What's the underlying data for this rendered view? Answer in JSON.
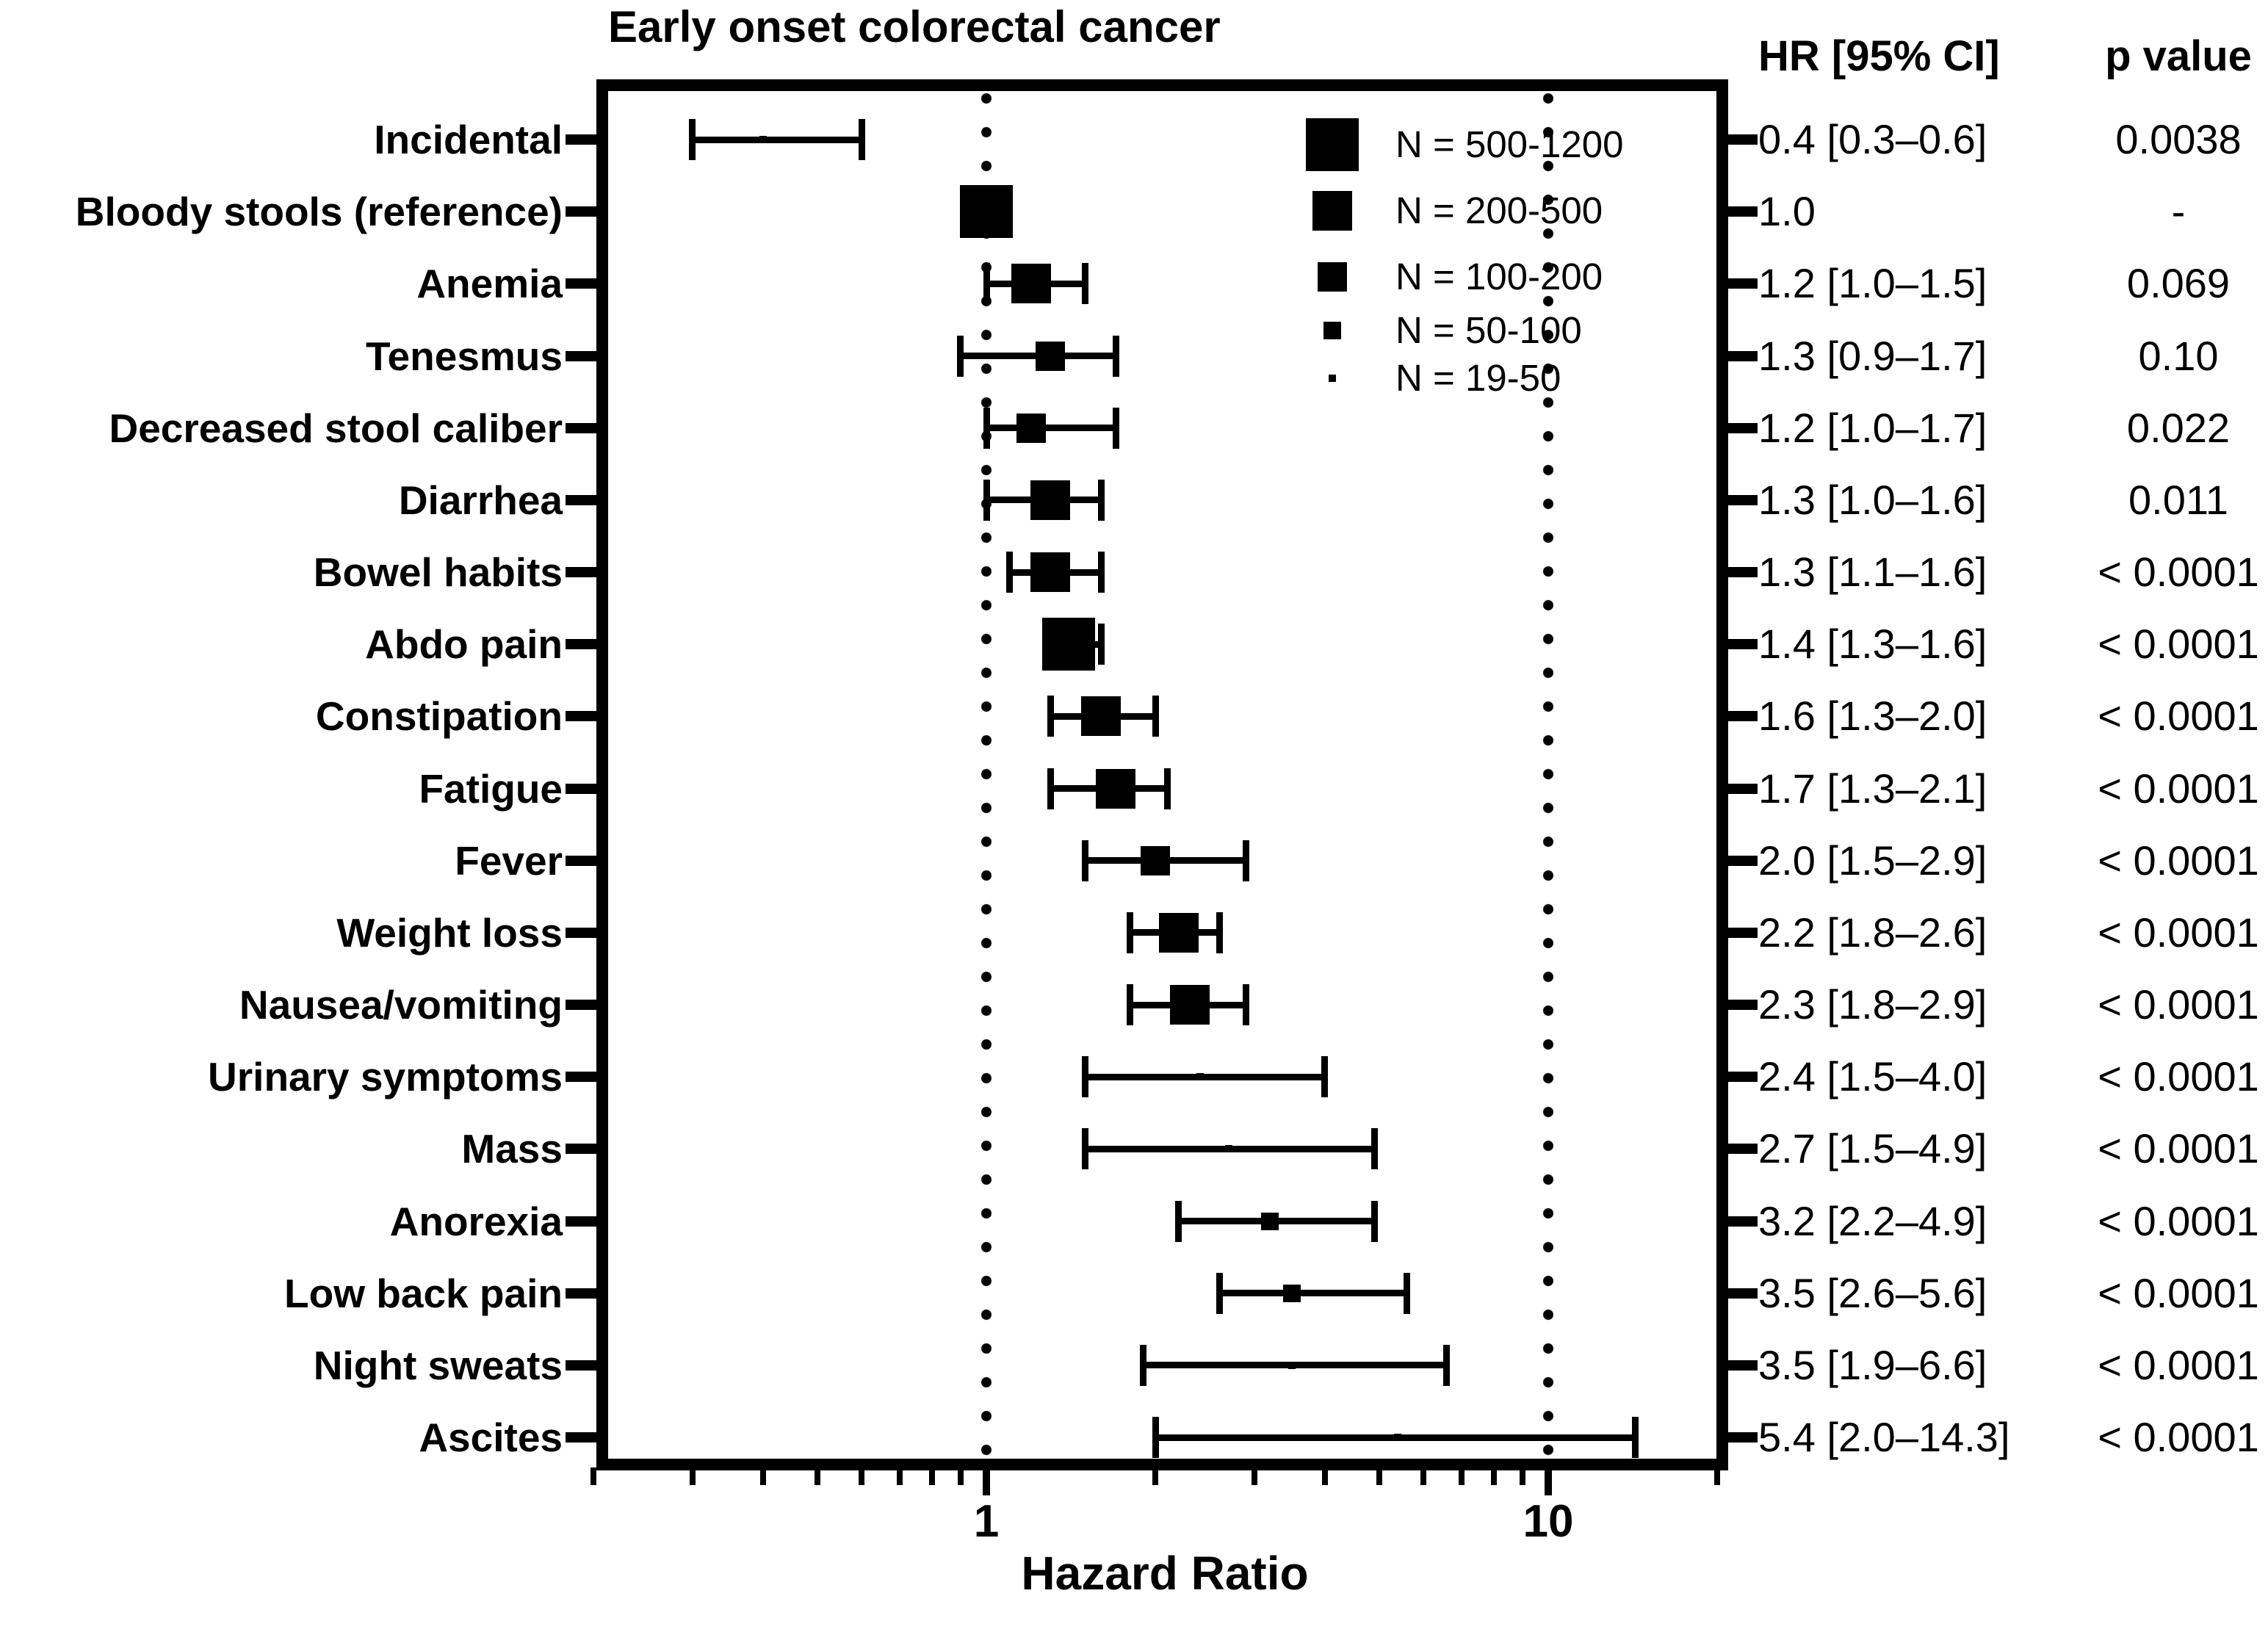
{
  "chart_data": {
    "type": "scatter",
    "subtype": "forest-plot",
    "title": "Early onset colorectal cancer",
    "xlabel": "Hazard Ratio",
    "x_scale": "log",
    "xlim": [
      0.2,
      20
    ],
    "grid": false,
    "reference_lines": [
      1,
      10
    ],
    "x_axis": {
      "major_ticks": [
        {
          "value": 1,
          "label": "1"
        },
        {
          "value": 10,
          "label": "10"
        }
      ],
      "minor_ticks": [
        0.2,
        0.3,
        0.4,
        0.5,
        0.6,
        0.7,
        0.8,
        0.9,
        2,
        3,
        4,
        5,
        6,
        7,
        8,
        9,
        20
      ]
    },
    "columns": {
      "hr_header": "HR [95% CI]",
      "p_header": "p value"
    },
    "legend": [
      {
        "label": "N = 500-1200",
        "n_range": "500-1200"
      },
      {
        "label": "N = 200-500",
        "n_range": "200-500"
      },
      {
        "label": "N = 100-200",
        "n_range": "100-200"
      },
      {
        "label": "N = 50-100",
        "n_range": "50-100"
      },
      {
        "label": "N = 19-50",
        "n_range": "19-50"
      }
    ],
    "rows": [
      {
        "label": "Incidental",
        "hr": 0.4,
        "ci_low": 0.3,
        "ci_high": 0.6,
        "hr_ci": "0.4 [0.3–0.6]",
        "p": "0.0038",
        "n_range": "19-50"
      },
      {
        "label": "Bloody stools (reference)",
        "hr": 1.0,
        "ci_low": null,
        "ci_high": null,
        "hr_ci": "1.0",
        "p": "-",
        "n_range": "500-1200"
      },
      {
        "label": "Anemia",
        "hr": 1.2,
        "ci_low": 1.0,
        "ci_high": 1.5,
        "hr_ci": "1.2 [1.0–1.5]",
        "p": "0.069",
        "n_range": "200-500"
      },
      {
        "label": "Tenesmus",
        "hr": 1.3,
        "ci_low": 0.9,
        "ci_high": 1.7,
        "hr_ci": "1.3 [0.9–1.7]",
        "p": "0.10",
        "n_range": "100-200"
      },
      {
        "label": "Decreased stool caliber",
        "hr": 1.2,
        "ci_low": 1.0,
        "ci_high": 1.7,
        "hr_ci": "1.2 [1.0–1.7]",
        "p": "0.022",
        "n_range": "100-200"
      },
      {
        "label": "Diarrhea",
        "hr": 1.3,
        "ci_low": 1.0,
        "ci_high": 1.6,
        "hr_ci": "1.3 [1.0–1.6]",
        "p": "0.011",
        "n_range": "200-500"
      },
      {
        "label": "Bowel habits",
        "hr": 1.3,
        "ci_low": 1.1,
        "ci_high": 1.6,
        "hr_ci": "1.3 [1.1–1.6]",
        "p": "< 0.0001",
        "n_range": "200-500"
      },
      {
        "label": "Abdo pain",
        "hr": 1.4,
        "ci_low": 1.3,
        "ci_high": 1.6,
        "hr_ci": "1.4 [1.3–1.6]",
        "p": "< 0.0001",
        "n_range": "500-1200"
      },
      {
        "label": "Constipation",
        "hr": 1.6,
        "ci_low": 1.3,
        "ci_high": 2.0,
        "hr_ci": "1.6 [1.3–2.0]",
        "p": "< 0.0001",
        "n_range": "200-500"
      },
      {
        "label": "Fatigue",
        "hr": 1.7,
        "ci_low": 1.3,
        "ci_high": 2.1,
        "hr_ci": "1.7 [1.3–2.1]",
        "p": "< 0.0001",
        "n_range": "200-500"
      },
      {
        "label": "Fever",
        "hr": 2.0,
        "ci_low": 1.5,
        "ci_high": 2.9,
        "hr_ci": "2.0 [1.5–2.9]",
        "p": "< 0.0001",
        "n_range": "100-200"
      },
      {
        "label": "Weight loss",
        "hr": 2.2,
        "ci_low": 1.8,
        "ci_high": 2.6,
        "hr_ci": "2.2 [1.8–2.6]",
        "p": "< 0.0001",
        "n_range": "200-500"
      },
      {
        "label": "Nausea/vomiting",
        "hr": 2.3,
        "ci_low": 1.8,
        "ci_high": 2.9,
        "hr_ci": "2.3 [1.8–2.9]",
        "p": "< 0.0001",
        "n_range": "200-500"
      },
      {
        "label": "Urinary symptoms",
        "hr": 2.4,
        "ci_low": 1.5,
        "ci_high": 4.0,
        "hr_ci": "2.4 [1.5–4.0]",
        "p": "< 0.0001",
        "n_range": "19-50"
      },
      {
        "label": "Mass",
        "hr": 2.7,
        "ci_low": 1.5,
        "ci_high": 4.9,
        "hr_ci": "2.7 [1.5–4.9]",
        "p": "< 0.0001",
        "n_range": "19-50"
      },
      {
        "label": "Anorexia",
        "hr": 3.2,
        "ci_low": 2.2,
        "ci_high": 4.9,
        "hr_ci": "3.2 [2.2–4.9]",
        "p": "< 0.0001",
        "n_range": "50-100"
      },
      {
        "label": "Low back pain",
        "hr": 3.5,
        "ci_low": 2.6,
        "ci_high": 5.6,
        "hr_ci": "3.5 [2.6–5.6]",
        "p": "< 0.0001",
        "n_range": "50-100"
      },
      {
        "label": "Night sweats",
        "hr": 3.5,
        "ci_low": 1.9,
        "ci_high": 6.6,
        "hr_ci": "3.5 [1.9–6.6]",
        "p": "< 0.0001",
        "n_range": "19-50"
      },
      {
        "label": "Ascites",
        "hr": 5.4,
        "ci_low": 2.0,
        "ci_high": 14.3,
        "hr_ci": "5.4 [2.0–14.3]",
        "p": "< 0.0001",
        "n_range": "19-50"
      }
    ],
    "colors": {
      "foreground": "#000000",
      "background": "#ffffff"
    }
  }
}
